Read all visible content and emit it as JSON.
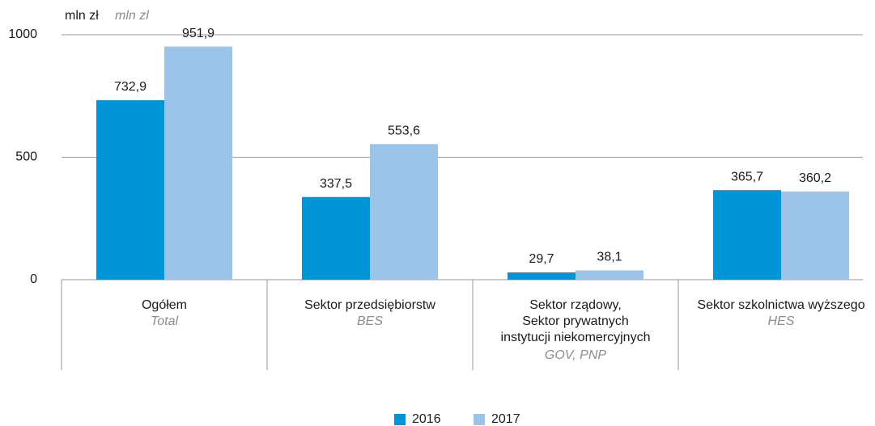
{
  "chart_data": {
    "type": "bar",
    "y_unit": "mln zł",
    "y_unit_en": "mln zl",
    "categories": [
      [
        "Ogółem"
      ],
      [
        "Sektor przedsiębiorstw"
      ],
      [
        "Sektor rządowy,",
        "Sektor prywatnych",
        "instytucji niekomercyjnych"
      ],
      [
        "Sektor szkolnictwa wyższego"
      ]
    ],
    "category_subtitles": [
      "Total",
      "BES",
      "GOV, PNP",
      "HES"
    ],
    "series": [
      {
        "name": "2016",
        "color": "#0095d6",
        "values": [
          732.9,
          337.5,
          29.7,
          365.7
        ],
        "value_labels": [
          "732,9",
          "337,5",
          "29,7",
          "365,7"
        ]
      },
      {
        "name": "2017",
        "color": "#9bc4e8",
        "values": [
          951.9,
          553.6,
          38.1,
          360.2
        ],
        "value_labels": [
          "951,9",
          "553,6",
          "38,1",
          "360,2"
        ]
      }
    ],
    "ylim": [
      0,
      1000
    ],
    "yticks": [
      0,
      500,
      1000
    ],
    "grid": true
  }
}
